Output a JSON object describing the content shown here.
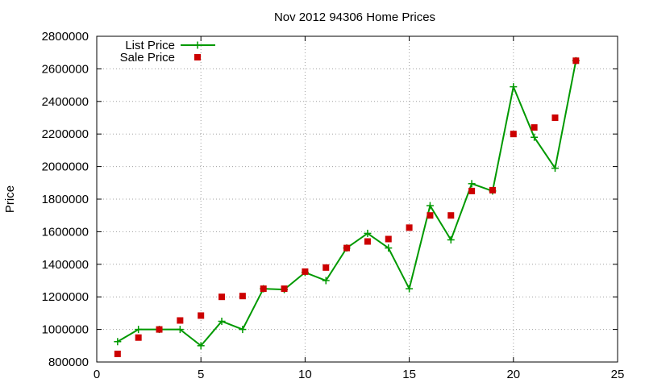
{
  "chart_data": {
    "type": "line",
    "title": "Nov 2012 94306 Home Prices",
    "xlabel": "",
    "ylabel": "Price",
    "xlim": [
      0,
      25
    ],
    "ylim": [
      800000,
      2800000
    ],
    "xticks": [
      0,
      5,
      10,
      15,
      20,
      25
    ],
    "yticks": [
      800000,
      1000000,
      1200000,
      1400000,
      1600000,
      1800000,
      2000000,
      2200000,
      2400000,
      2600000,
      2800000
    ],
    "xtick_labels": [
      "0",
      "5",
      "10",
      "15",
      "20",
      "25"
    ],
    "ytick_labels": [
      "800000",
      "1000000",
      "1200000",
      "1400000",
      "1600000",
      "1800000",
      "2000000",
      "2200000",
      "2400000",
      "2600000",
      "2800000"
    ],
    "grid": true,
    "legend_position": "top-left",
    "series": [
      {
        "name": "List Price",
        "style": "line+cross",
        "color": "#009900",
        "x": [
          1,
          2,
          3,
          4,
          5,
          6,
          7,
          8,
          9,
          10,
          11,
          12,
          13,
          14,
          15,
          16,
          17,
          18,
          19,
          20,
          21,
          22,
          23
        ],
        "y": [
          925000,
          1000000,
          1000000,
          1000000,
          900000,
          1050000,
          1000000,
          1250000,
          1245000,
          1350000,
          1300000,
          1500000,
          1590000,
          1500000,
          1250000,
          1760000,
          1550000,
          1895000,
          1850000,
          2490000,
          2180000,
          1990000,
          2650000
        ]
      },
      {
        "name": "Sale Price",
        "style": "points-square",
        "color": "#cc0000",
        "x": [
          1,
          2,
          3,
          4,
          5,
          6,
          7,
          8,
          9,
          10,
          11,
          12,
          13,
          14,
          15,
          16,
          17,
          18,
          19,
          20,
          21,
          22,
          23
        ],
        "y": [
          850000,
          950000,
          1000000,
          1055000,
          1085000,
          1200000,
          1205000,
          1250000,
          1250000,
          1355000,
          1380000,
          1500000,
          1540000,
          1555000,
          1625000,
          1700000,
          1700000,
          1850000,
          1855000,
          2200000,
          2240000,
          2300000,
          2650000
        ]
      }
    ]
  }
}
